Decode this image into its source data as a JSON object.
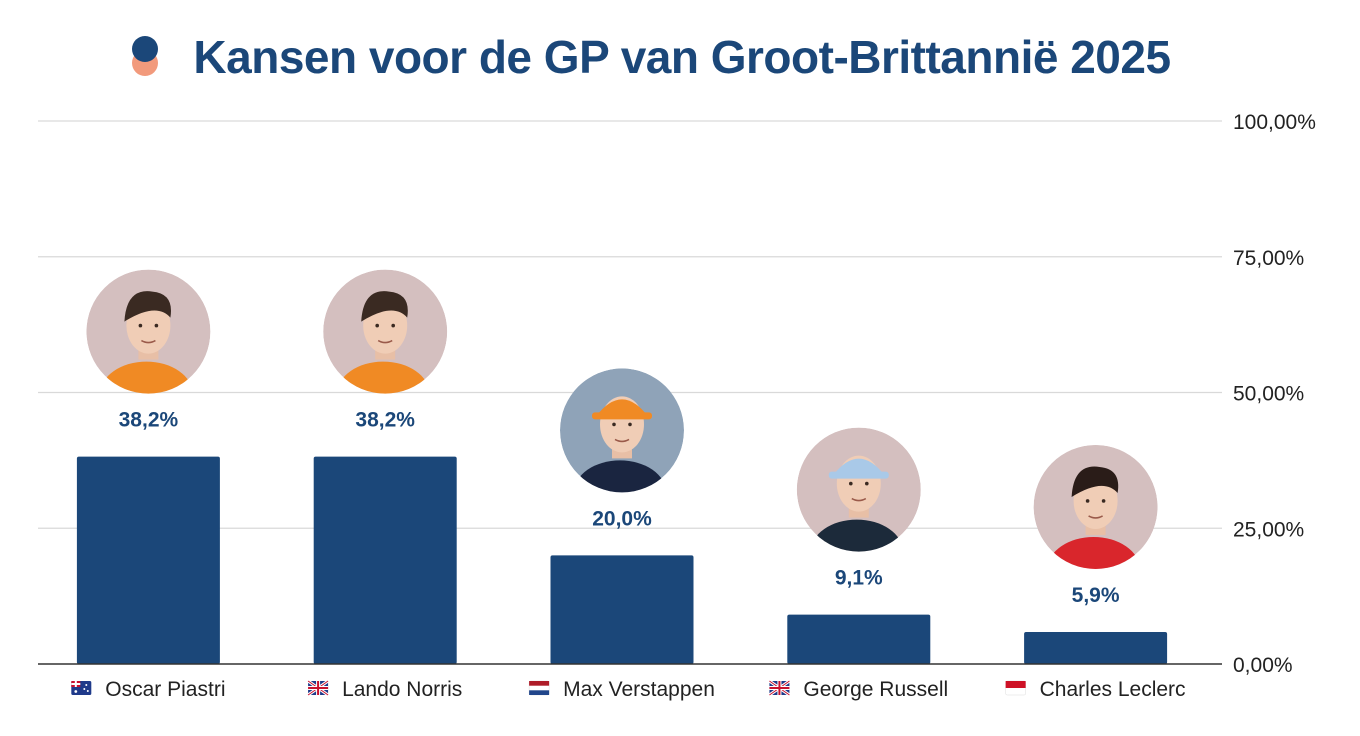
{
  "header": {
    "title": "Kansen voor de GP van Groot-Brittannië 2025"
  },
  "colors": {
    "bar": "#1b4779",
    "label": "#1b4779",
    "grid": "#d9d9d9",
    "axis": "#333333",
    "logo_top": "#1b4779",
    "logo_bottom": "#f29a7c"
  },
  "chart_data": {
    "type": "bar",
    "title": "Kansen voor de GP van Groot-Brittannië 2025",
    "categories": [
      "Oscar Piastri",
      "Lando Norris",
      "Max Verstappen",
      "George Russell",
      "Charles Leclerc"
    ],
    "values": [
      38.2,
      38.2,
      20.0,
      9.1,
      5.9
    ],
    "value_labels": [
      "38,2%",
      "38,2%",
      "20,0%",
      "9,1%",
      "5,9%"
    ],
    "flags": [
      "australia-flag-icon",
      "uk-flag-icon",
      "netherlands-flag-icon",
      "uk-flag-icon",
      "monaco-flag-icon"
    ],
    "avatars": [
      "oscar-piastri-avatar",
      "lando-norris-avatar",
      "max-verstappen-avatar",
      "george-russell-avatar",
      "charles-leclerc-avatar"
    ],
    "avatar_colors": [
      {
        "bg": "#d4bfbf",
        "suit": "#f08a24",
        "hair": "#3a2a22",
        "cap": ""
      },
      {
        "bg": "#d4bfbf",
        "suit": "#f08a24",
        "hair": "#3a2a22",
        "cap": ""
      },
      {
        "bg": "#8fa3b8",
        "suit": "#1a2540",
        "hair": "#5a4030",
        "cap": "#f08a24"
      },
      {
        "bg": "#d4bfbf",
        "suit": "#1c2a3a",
        "hair": "#6b4a30",
        "cap": "#a9c9e8"
      },
      {
        "bg": "#d4bfbf",
        "suit": "#d9262c",
        "hair": "#2a1c18",
        "cap": ""
      }
    ],
    "ylim": [
      0,
      100
    ],
    "yticks": [
      0,
      25,
      50,
      75,
      100
    ],
    "ytick_labels": [
      "0,00%",
      "25,00%",
      "50,00%",
      "75,00%",
      "100,00%"
    ],
    "grid": true,
    "y_axis_position": "right"
  }
}
